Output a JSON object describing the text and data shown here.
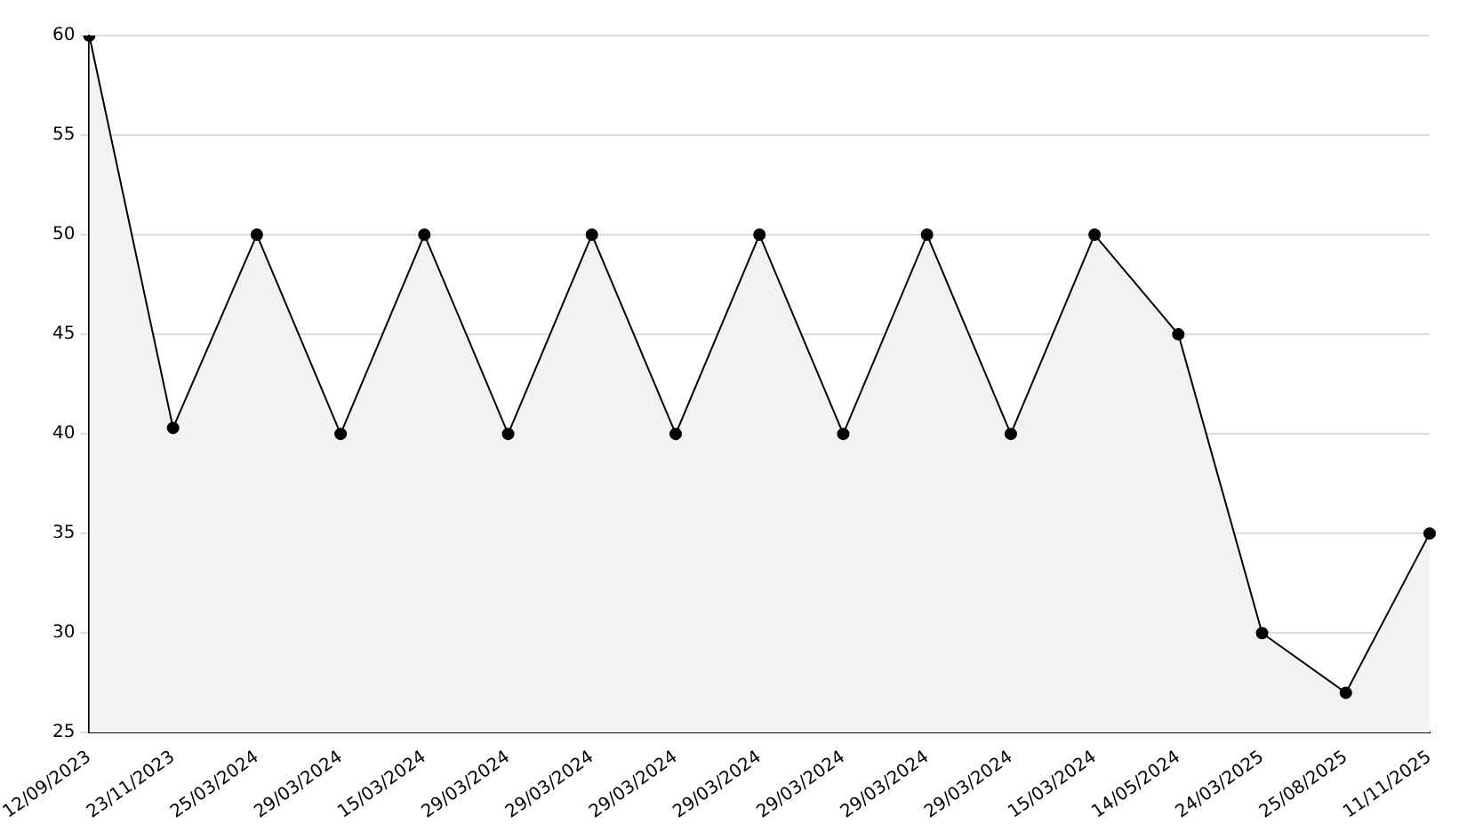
{
  "chart_data": {
    "type": "area",
    "categories": [
      "12/09/2023",
      "23/11/2023",
      "25/03/2024",
      "29/03/2024",
      "15/03/2024",
      "29/03/2024",
      "29/03/2024",
      "29/03/2024",
      "29/03/2024",
      "29/03/2024",
      "29/03/2024",
      "29/03/2024",
      "15/03/2024",
      "14/05/2024",
      "24/03/2025",
      "25/08/2025",
      "11/11/2025"
    ],
    "series": [
      {
        "color": "#000000",
        "values": [
          60,
          40.3,
          50,
          40,
          50,
          40,
          50,
          40,
          50,
          40,
          50,
          40,
          50,
          45,
          30,
          27,
          35
        ]
      }
    ],
    "ylim": [
      25,
      60
    ],
    "yticks": [
      25,
      30,
      35,
      40,
      45,
      50,
      55,
      60
    ],
    "grid": "y",
    "marker": "circle",
    "legend": false
  }
}
